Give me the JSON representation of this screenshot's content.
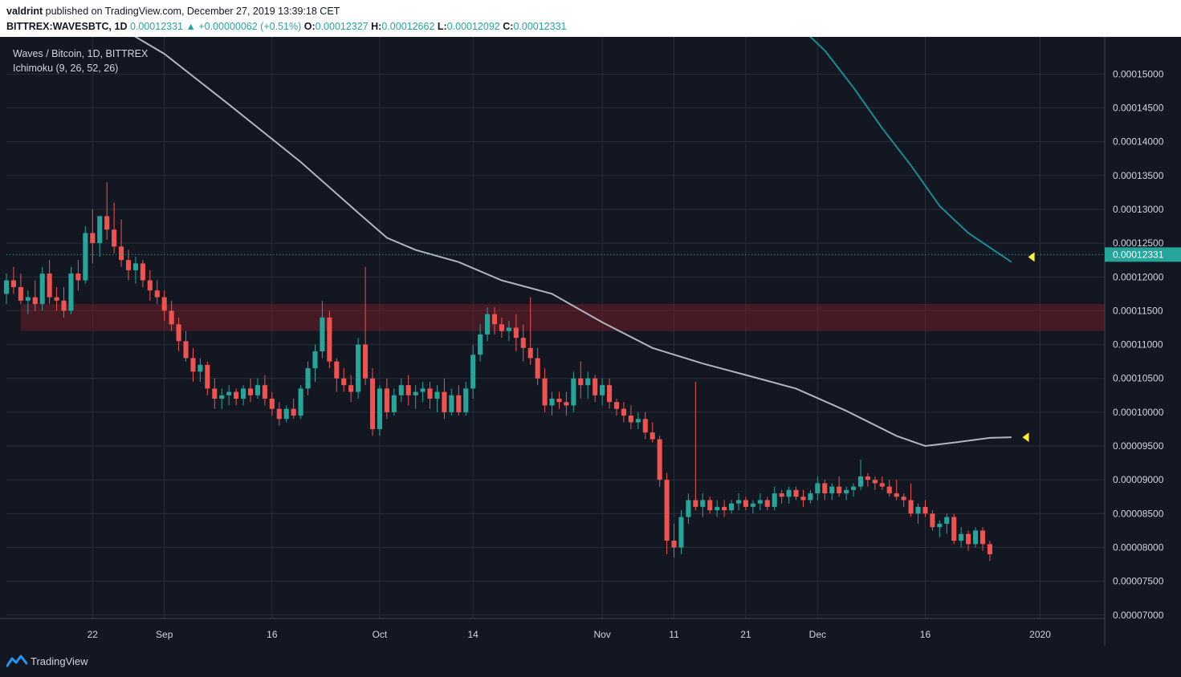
{
  "header": {
    "author": "valdrint",
    "published_text": "published on TradingView.com, December 27, 2019 13:39:18 CET",
    "symbol_tf": "BITTREX:WAVESBTC, 1D",
    "last": "0.00012331",
    "change": "+0.00000062 (+0.51%)",
    "o_label": "O:",
    "o_value": "0.00012327",
    "h_label": "H:",
    "h_value": "0.00012662",
    "l_label": "L:",
    "l_value": "0.00012092",
    "c_label": "C:",
    "c_value": "0.00012331"
  },
  "legend": {
    "pair": "Waves / Bitcoin, 1D, BITTREX",
    "indicator": "Ichimoku (9, 26, 52, 26)"
  },
  "footer": {
    "brand": "TradingView"
  },
  "colors": {
    "background": "#131722",
    "grid": "#2a2e39",
    "up": "#26a69a",
    "down": "#ef5350",
    "ma_gray": "#b2b5be",
    "ma_teal": "#1e8b94",
    "zone": "#7a1e28",
    "marker": "#ffeb3b",
    "price_tag": "#26a69a"
  },
  "chart_data": {
    "type": "candlestick",
    "x_ticks": [
      "22",
      "Sep",
      "16",
      "Oct",
      "14",
      "Nov",
      "11",
      "21",
      "Dec",
      "16",
      "2020"
    ],
    "x_tick_dates": [
      "2019-08-22",
      "2019-09-01",
      "2019-09-16",
      "2019-10-01",
      "2019-10-14",
      "2019-11-01",
      "2019-11-11",
      "2019-11-21",
      "2019-12-01",
      "2019-12-16",
      "2020-01-01"
    ],
    "y_ticks": [
      "0.00015000",
      "0.00014500",
      "0.00014000",
      "0.00013500",
      "0.00013000",
      "0.00012500",
      "0.00012000",
      "0.00011500",
      "0.00011000",
      "0.00010500",
      "0.00010000",
      "0.00009500",
      "0.00009000",
      "0.00008500",
      "0.00008000",
      "0.00007500",
      "0.00007000"
    ],
    "y_tick_values": [
      0.00015,
      0.000145,
      0.00014,
      0.000135,
      0.00013,
      0.000125,
      0.00012,
      0.000115,
      0.00011,
      0.000105,
      0.0001,
      9.5e-05,
      9e-05,
      8.5e-05,
      8e-05,
      7.5e-05,
      7e-05
    ],
    "ylim": [
      6.95e-05,
      0.0001555
    ],
    "x_range": [
      "2019-08-10",
      "2020-01-10"
    ],
    "current_price": 0.00012331,
    "current_price_label": "0.00012331",
    "support_zone": [
      0.000112,
      0.000116
    ],
    "ma_gray": [
      [
        "2019-08-24",
        0.000158
      ],
      [
        "2019-09-01",
        0.000153
      ],
      [
        "2019-09-10",
        0.0001455
      ],
      [
        "2019-09-20",
        0.000137
      ],
      [
        "2019-09-28",
        0.0001295
      ],
      [
        "2019-10-02",
        0.0001258
      ],
      [
        "2019-10-06",
        0.000124
      ],
      [
        "2019-10-12",
        0.0001222
      ],
      [
        "2019-10-18",
        0.0001195
      ],
      [
        "2019-10-25",
        0.0001175
      ],
      [
        "2019-11-01",
        0.0001133
      ],
      [
        "2019-11-08",
        0.0001095
      ],
      [
        "2019-11-15",
        0.0001072
      ],
      [
        "2019-11-21",
        0.0001055
      ],
      [
        "2019-11-28",
        0.0001035
      ],
      [
        "2019-12-05",
        0.0001002
      ],
      [
        "2019-12-12",
        9.65e-05
      ],
      [
        "2019-12-16",
        9.5e-05
      ],
      [
        "2019-12-20",
        9.55e-05
      ],
      [
        "2019-12-25",
        9.62e-05
      ],
      [
        "2019-12-28",
        9.63e-05
      ]
    ],
    "ma_teal": [
      [
        "2019-11-28",
        0.0001575
      ],
      [
        "2019-12-02",
        0.0001535
      ],
      [
        "2019-12-06",
        0.000148
      ],
      [
        "2019-12-10",
        0.000142
      ],
      [
        "2019-12-14",
        0.0001365
      ],
      [
        "2019-12-18",
        0.0001305
      ],
      [
        "2019-12-22",
        0.0001265
      ],
      [
        "2019-12-28",
        0.0001222
      ]
    ],
    "candles": [
      [
        "2019-08-10",
        0.0001175,
        0.0001205,
        0.000116,
        0.0001195
      ],
      [
        "2019-08-11",
        0.0001195,
        0.0001215,
        0.0001175,
        0.0001185
      ],
      [
        "2019-08-12",
        0.0001185,
        0.0001205,
        0.000116,
        0.0001165
      ],
      [
        "2019-08-13",
        0.0001165,
        0.000118,
        0.0001145,
        0.000117
      ],
      [
        "2019-08-14",
        0.000117,
        0.0001195,
        0.000115,
        0.000116
      ],
      [
        "2019-08-15",
        0.000116,
        0.0001215,
        0.000115,
        0.0001205
      ],
      [
        "2019-08-16",
        0.0001205,
        0.0001225,
        0.000116,
        0.000117
      ],
      [
        "2019-08-17",
        0.000117,
        0.0001185,
        0.000115,
        0.0001165
      ],
      [
        "2019-08-18",
        0.0001165,
        0.0001185,
        0.000114,
        0.000115
      ],
      [
        "2019-08-19",
        0.000115,
        0.0001215,
        0.0001145,
        0.0001205
      ],
      [
        "2019-08-20",
        0.0001205,
        0.0001225,
        0.000118,
        0.0001195
      ],
      [
        "2019-08-21",
        0.0001195,
        0.0001275,
        0.000119,
        0.0001265
      ],
      [
        "2019-08-22",
        0.0001265,
        0.00013,
        0.000122,
        0.000125
      ],
      [
        "2019-08-23",
        0.000125,
        0.000129,
        0.000123,
        0.000129
      ],
      [
        "2019-08-24",
        0.000129,
        0.000134,
        0.0001255,
        0.000127
      ],
      [
        "2019-08-25",
        0.000127,
        0.000131,
        0.0001235,
        0.0001245
      ],
      [
        "2019-08-26",
        0.0001245,
        0.0001285,
        0.0001215,
        0.0001225
      ],
      [
        "2019-08-27",
        0.0001225,
        0.000124,
        0.0001195,
        0.000121
      ],
      [
        "2019-08-28",
        0.000121,
        0.000123,
        0.000119,
        0.000122
      ],
      [
        "2019-08-29",
        0.000122,
        0.0001225,
        0.0001185,
        0.0001195
      ],
      [
        "2019-08-30",
        0.0001195,
        0.000121,
        0.0001165,
        0.000118
      ],
      [
        "2019-08-31",
        0.000118,
        0.0001195,
        0.000116,
        0.000117
      ],
      [
        "2019-09-01",
        0.000117,
        0.000118,
        0.0001135,
        0.000115
      ],
      [
        "2019-09-02",
        0.000115,
        0.0001165,
        0.000112,
        0.000113
      ],
      [
        "2019-09-03",
        0.000113,
        0.000114,
        0.000109,
        0.0001105
      ],
      [
        "2019-09-04",
        0.0001105,
        0.000112,
        0.0001075,
        0.000108
      ],
      [
        "2019-09-05",
        0.000108,
        0.0001095,
        0.0001045,
        0.000106
      ],
      [
        "2019-09-06",
        0.000106,
        0.000108,
        0.0001045,
        0.000107
      ],
      [
        "2019-09-07",
        0.000107,
        0.0001075,
        0.0001025,
        0.0001035
      ],
      [
        "2019-09-08",
        0.0001035,
        0.000105,
        0.0001005,
        0.000102
      ],
      [
        "2019-09-09",
        0.000102,
        0.0001035,
        0.0001005,
        0.0001025
      ],
      [
        "2019-09-10",
        0.0001025,
        0.000104,
        0.000101,
        0.000103
      ],
      [
        "2019-09-11",
        0.000103,
        0.0001035,
        0.000101,
        0.000102
      ],
      [
        "2019-09-12",
        0.000102,
        0.000104,
        0.000101,
        0.0001035
      ],
      [
        "2019-09-13",
        0.0001035,
        0.000105,
        0.0001015,
        0.0001025
      ],
      [
        "2019-09-14",
        0.0001025,
        0.000105,
        0.000102,
        0.000104
      ],
      [
        "2019-09-15",
        0.000104,
        0.0001055,
        0.000101,
        0.000102
      ],
      [
        "2019-09-16",
        0.000102,
        0.000103,
        9.95e-05,
        0.0001005
      ],
      [
        "2019-09-17",
        0.0001005,
        0.0001015,
        9.8e-05,
        9.9e-05
      ],
      [
        "2019-09-18",
        9.9e-05,
        0.000101,
        9.85e-05,
        0.0001005
      ],
      [
        "2019-09-19",
        0.0001005,
        0.000102,
        9.9e-05,
        9.95e-05
      ],
      [
        "2019-09-20",
        9.95e-05,
        0.000104,
        9.9e-05,
        0.0001035
      ],
      [
        "2019-09-21",
        0.0001035,
        0.0001075,
        0.0001025,
        0.0001065
      ],
      [
        "2019-09-22",
        0.0001065,
        0.00011,
        0.0001045,
        0.000109
      ],
      [
        "2019-09-23",
        0.000109,
        0.0001165,
        0.000108,
        0.000114
      ],
      [
        "2019-09-24",
        0.000114,
        0.000115,
        0.0001065,
        0.0001075
      ],
      [
        "2019-09-25",
        0.0001075,
        0.000108,
        0.000103,
        0.000105
      ],
      [
        "2019-09-26",
        0.000105,
        0.0001065,
        0.000103,
        0.000104
      ],
      [
        "2019-09-27",
        0.000104,
        0.0001055,
        0.0001015,
        0.000103
      ],
      [
        "2019-09-28",
        0.000103,
        0.000111,
        0.000102,
        0.00011
      ],
      [
        "2019-09-29",
        0.00011,
        0.0001215,
        0.000104,
        0.000105
      ],
      [
        "2019-09-30",
        0.000105,
        0.0001065,
        9.65e-05,
        9.75e-05
      ],
      [
        "2019-10-01",
        9.75e-05,
        0.000104,
        9.65e-05,
        0.0001035
      ],
      [
        "2019-10-02",
        0.0001035,
        0.000105,
        9.9e-05,
        0.0001
      ],
      [
        "2019-10-03",
        0.0001,
        0.0001035,
        9.95e-05,
        0.0001025
      ],
      [
        "2019-10-04",
        0.0001025,
        0.000105,
        0.0001015,
        0.000104
      ],
      [
        "2019-10-05",
        0.000104,
        0.0001055,
        0.000101,
        0.0001025
      ],
      [
        "2019-10-06",
        0.0001025,
        0.000104,
        0.0001005,
        0.000103
      ],
      [
        "2019-10-07",
        0.000103,
        0.0001045,
        0.0001015,
        0.0001035
      ],
      [
        "2019-10-08",
        0.0001035,
        0.0001045,
        0.0001005,
        0.000102
      ],
      [
        "2019-10-09",
        0.000102,
        0.000104,
        0.0001,
        0.000103
      ],
      [
        "2019-10-10",
        0.000103,
        0.000105,
        9.9e-05,
        0.0001
      ],
      [
        "2019-10-11",
        0.0001,
        0.0001035,
        9.95e-05,
        0.0001025
      ],
      [
        "2019-10-12",
        0.0001025,
        0.000104,
        9.95e-05,
        0.0001
      ],
      [
        "2019-10-13",
        0.0001,
        0.0001045,
        9.95e-05,
        0.0001035
      ],
      [
        "2019-10-14",
        0.0001035,
        0.00011,
        0.000102,
        0.0001085
      ],
      [
        "2019-10-15",
        0.0001085,
        0.000113,
        0.0001075,
        0.0001115
      ],
      [
        "2019-10-16",
        0.0001115,
        0.0001155,
        0.0001105,
        0.0001145
      ],
      [
        "2019-10-17",
        0.0001145,
        0.0001155,
        0.0001115,
        0.000113
      ],
      [
        "2019-10-18",
        0.000113,
        0.000114,
        0.000111,
        0.000112
      ],
      [
        "2019-10-19",
        0.000112,
        0.0001135,
        0.0001105,
        0.0001125
      ],
      [
        "2019-10-20",
        0.0001125,
        0.0001145,
        0.000109,
        0.000111
      ],
      [
        "2019-10-21",
        0.000111,
        0.000113,
        0.0001075,
        0.0001095
      ],
      [
        "2019-10-22",
        0.0001095,
        0.000117,
        0.000107,
        0.000108
      ],
      [
        "2019-10-23",
        0.000108,
        0.0001095,
        0.000104,
        0.000105
      ],
      [
        "2019-10-24",
        0.000105,
        0.0001065,
        0.0001,
        0.000101
      ],
      [
        "2019-10-25",
        0.000101,
        0.000103,
        9.95e-05,
        0.000102
      ],
      [
        "2019-10-26",
        0.000102,
        0.000103,
        0.0001005,
        0.0001015
      ],
      [
        "2019-10-27",
        0.0001015,
        0.000103,
        9.95e-05,
        0.000101
      ],
      [
        "2019-10-28",
        0.000101,
        0.000106,
        0.0001,
        0.000105
      ],
      [
        "2019-10-29",
        0.000105,
        0.0001075,
        0.000102,
        0.000104
      ],
      [
        "2019-10-30",
        0.000104,
        0.000106,
        0.000102,
        0.000105
      ],
      [
        "2019-10-31",
        0.000105,
        0.0001055,
        0.0001015,
        0.0001025
      ],
      [
        "2019-11-01",
        0.0001025,
        0.000105,
        0.000101,
        0.000104
      ],
      [
        "2019-11-02",
        0.000104,
        0.000105,
        0.0001005,
        0.0001015
      ],
      [
        "2019-11-03",
        0.0001015,
        0.000102,
        9.95e-05,
        0.0001005
      ],
      [
        "2019-11-04",
        0.0001005,
        0.0001015,
        9.85e-05,
        9.95e-05
      ],
      [
        "2019-11-05",
        9.95e-05,
        0.000101,
        9.75e-05,
        9.85e-05
      ],
      [
        "2019-11-06",
        9.85e-05,
        0.0001,
        9.75e-05,
        9.9e-05
      ],
      [
        "2019-11-07",
        9.9e-05,
        0.0001,
        9.6e-05,
        9.7e-05
      ],
      [
        "2019-11-08",
        9.7e-05,
        9.85e-05,
        9.55e-05,
        9.6e-05
      ],
      [
        "2019-11-09",
        9.6e-05,
        9.65e-05,
        8.9e-05,
        9e-05
      ],
      [
        "2019-11-10",
        9e-05,
        9.1e-05,
        7.9e-05,
        8.1e-05
      ],
      [
        "2019-11-11",
        8.1e-05,
        8.35e-05,
        7.85e-05,
        8e-05
      ],
      [
        "2019-11-12",
        8e-05,
        8.55e-05,
        7.9e-05,
        8.45e-05
      ],
      [
        "2019-11-13",
        8.45e-05,
        8.8e-05,
        8.35e-05,
        8.7e-05
      ],
      [
        "2019-11-14",
        8.7e-05,
        0.0001045,
        8.55e-05,
        8.6e-05
      ],
      [
        "2019-11-15",
        8.6e-05,
        8.8e-05,
        8.45e-05,
        8.7e-05
      ],
      [
        "2019-11-16",
        8.7e-05,
        8.75e-05,
        8.5e-05,
        8.55e-05
      ],
      [
        "2019-11-17",
        8.55e-05,
        8.7e-05,
        8.45e-05,
        8.6e-05
      ],
      [
        "2019-11-18",
        8.6e-05,
        8.7e-05,
        8.45e-05,
        8.55e-05
      ],
      [
        "2019-11-19",
        8.55e-05,
        8.7e-05,
        8.5e-05,
        8.65e-05
      ],
      [
        "2019-11-20",
        8.65e-05,
        8.8e-05,
        8.55e-05,
        8.7e-05
      ],
      [
        "2019-11-21",
        8.7e-05,
        8.75e-05,
        8.55e-05,
        8.6e-05
      ],
      [
        "2019-11-22",
        8.6e-05,
        8.7e-05,
        8.5e-05,
        8.65e-05
      ],
      [
        "2019-11-23",
        8.65e-05,
        8.8e-05,
        8.55e-05,
        8.7e-05
      ],
      [
        "2019-11-24",
        8.7e-05,
        8.75e-05,
        8.55e-05,
        8.6e-05
      ],
      [
        "2019-11-25",
        8.6e-05,
        8.9e-05,
        8.55e-05,
        8.8e-05
      ],
      [
        "2019-11-26",
        8.8e-05,
        8.85e-05,
        8.65e-05,
        8.75e-05
      ],
      [
        "2019-11-27",
        8.75e-05,
        8.9e-05,
        8.65e-05,
        8.85e-05
      ],
      [
        "2019-11-28",
        8.85e-05,
        8.9e-05,
        8.7e-05,
        8.75e-05
      ],
      [
        "2019-11-29",
        8.75e-05,
        8.85e-05,
        8.6e-05,
        8.7e-05
      ],
      [
        "2019-11-30",
        8.7e-05,
        8.85e-05,
        8.65e-05,
        8.8e-05
      ],
      [
        "2019-12-01",
        8.8e-05,
        9.05e-05,
        8.7e-05,
        8.95e-05
      ],
      [
        "2019-12-02",
        8.95e-05,
        9e-05,
        8.7e-05,
        8.8e-05
      ],
      [
        "2019-12-03",
        8.8e-05,
        8.95e-05,
        8.7e-05,
        8.9e-05
      ],
      [
        "2019-12-04",
        8.9e-05,
        9.05e-05,
        8.75e-05,
        8.8e-05
      ],
      [
        "2019-12-05",
        8.8e-05,
        8.9e-05,
        8.7e-05,
        8.85e-05
      ],
      [
        "2019-12-06",
        8.85e-05,
        8.95e-05,
        8.75e-05,
        8.9e-05
      ],
      [
        "2019-12-07",
        8.9e-05,
        9.3e-05,
        8.85e-05,
        9.05e-05
      ],
      [
        "2019-12-08",
        9.05e-05,
        9.1e-05,
        8.9e-05,
        9e-05
      ],
      [
        "2019-12-09",
        9e-05,
        9.05e-05,
        8.85e-05,
        8.95e-05
      ],
      [
        "2019-12-10",
        8.95e-05,
        9.05e-05,
        8.85e-05,
        8.9e-05
      ],
      [
        "2019-12-11",
        8.9e-05,
        9e-05,
        8.75e-05,
        8.8e-05
      ],
      [
        "2019-12-12",
        8.8e-05,
        9e-05,
        8.7e-05,
        8.75e-05
      ],
      [
        "2019-12-13",
        8.75e-05,
        8.8e-05,
        8.6e-05,
        8.7e-05
      ],
      [
        "2019-12-14",
        8.7e-05,
        8.95e-05,
        8.45e-05,
        8.5e-05
      ],
      [
        "2019-12-15",
        8.5e-05,
        8.65e-05,
        8.35e-05,
        8.6e-05
      ],
      [
        "2019-12-16",
        8.6e-05,
        8.7e-05,
        8.45e-05,
        8.5e-05
      ],
      [
        "2019-12-17",
        8.5e-05,
        8.55e-05,
        8.25e-05,
        8.3e-05
      ],
      [
        "2019-12-18",
        8.3e-05,
        8.4e-05,
        8.15e-05,
        8.35e-05
      ],
      [
        "2019-12-19",
        8.35e-05,
        8.5e-05,
        8.2e-05,
        8.45e-05
      ],
      [
        "2019-12-20",
        8.45e-05,
        8.5e-05,
        8.05e-05,
        8.1e-05
      ],
      [
        "2019-12-21",
        8.1e-05,
        8.3e-05,
        8e-05,
        8.2e-05
      ],
      [
        "2019-12-22",
        8.2e-05,
        8.25e-05,
        7.95e-05,
        8.05e-05
      ],
      [
        "2019-12-23",
        8.05e-05,
        8.3e-05,
        8e-05,
        8.25e-05
      ],
      [
        "2019-12-24",
        8.25e-05,
        8.3e-05,
        7.95e-05,
        8.05e-05
      ],
      [
        "2019-12-25",
        8.05e-05,
        8.1e-05,
        7.8e-05,
        7.9e-05
      ]
    ]
  }
}
